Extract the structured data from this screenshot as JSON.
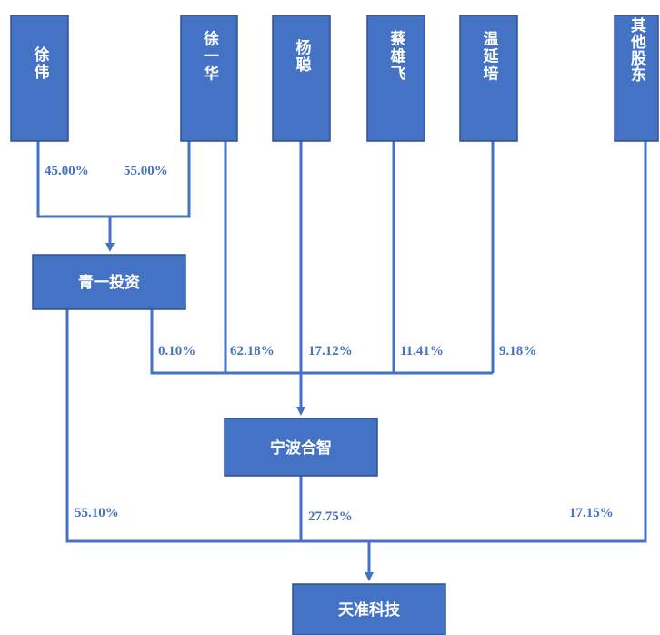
{
  "nodes": {
    "xu_wei": "徐伟",
    "xu_yihua": "徐一华",
    "yang_cong": "杨聪",
    "cai_xiongfei": "蔡雄飞",
    "wen_yanpei": "温延培",
    "others": "其他股东",
    "qingyi": "青一投资",
    "ningbo": "宁波合智",
    "tianzhun": "天准科技"
  },
  "percentages": {
    "xu_wei_to_qingyi": "45.00%",
    "xu_yihua_to_qingyi": "55.00%",
    "qingyi_to_ningbo": "0.10%",
    "xu_yihua_to_ningbo": "62.18%",
    "yang_cong_to_ningbo": "17.12%",
    "cai_xiongfei_to_ningbo": "11.41%",
    "wen_yanpei_to_ningbo": "9.18%",
    "qingyi_to_tianzhun": "55.10%",
    "ningbo_to_tianzhun": "27.75%",
    "others_to_tianzhun": "17.15%"
  }
}
